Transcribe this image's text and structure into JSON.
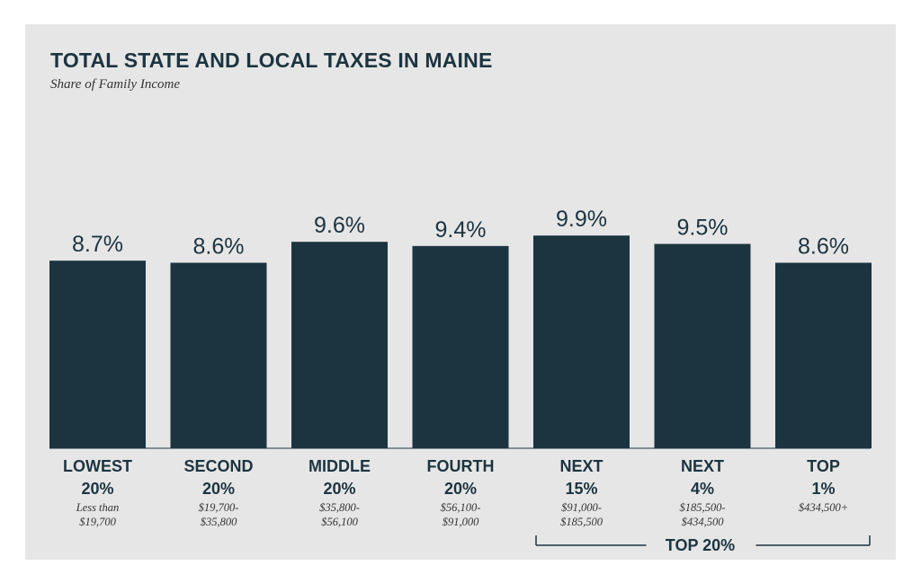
{
  "chart_data": {
    "type": "bar",
    "title": "TOTAL STATE AND LOCAL TAXES IN MAINE",
    "subtitle": "Share of Family Income",
    "categories": [
      {
        "line1": "LOWEST",
        "line2": "20%",
        "range": [
          "Less than",
          "$19,700"
        ]
      },
      {
        "line1": "SECOND",
        "line2": "20%",
        "range": [
          "$19,700-",
          "$35,800"
        ]
      },
      {
        "line1": "MIDDLE",
        "line2": "20%",
        "range": [
          "$35,800-",
          "$56,100"
        ]
      },
      {
        "line1": "FOURTH",
        "line2": "20%",
        "range": [
          "$56,100-",
          "$91,000"
        ]
      },
      {
        "line1": "NEXT",
        "line2": "15%",
        "range": [
          "$91,000-",
          "$185,500"
        ]
      },
      {
        "line1": "NEXT",
        "line2": "4%",
        "range": [
          "$185,500-",
          "$434,500"
        ]
      },
      {
        "line1": "TOP",
        "line2": "1%",
        "range": [
          "$434,500+"
        ]
      }
    ],
    "values": [
      8.7,
      8.6,
      9.6,
      9.4,
      9.9,
      9.5,
      8.6
    ],
    "value_labels": [
      "8.7%",
      "8.6%",
      "9.6%",
      "9.4%",
      "9.9%",
      "9.5%",
      "8.6%"
    ],
    "xlabel": "",
    "ylabel": "",
    "grid": false,
    "group_bracket": {
      "label": "TOP 20%",
      "from_index": 4,
      "to_index": 6
    },
    "colors": {
      "bar": "#1c3440",
      "text": "#1c3440",
      "background": "#e6e6e6"
    }
  }
}
